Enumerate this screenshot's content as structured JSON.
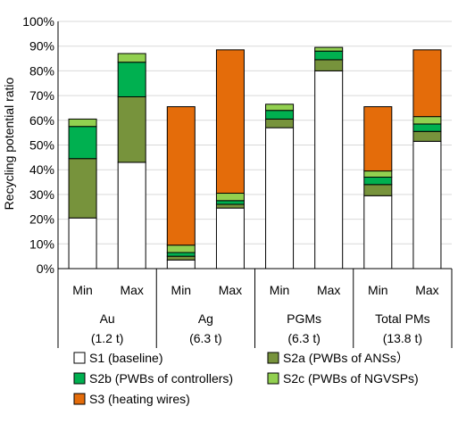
{
  "chart_data": {
    "type": "bar",
    "stacked": true,
    "ylabel": "Recycling potential ratio",
    "ylim": [
      0,
      100
    ],
    "y_ticks": [
      "0%",
      "10%",
      "20%",
      "30%",
      "40%",
      "50%",
      "60%",
      "70%",
      "80%",
      "90%",
      "100%"
    ],
    "grid": true,
    "legend_position": "bottom",
    "groups": [
      {
        "name": "Au",
        "amount": "(1.2 t)"
      },
      {
        "name": "Ag",
        "amount": "(6.3 t)"
      },
      {
        "name": "PGMs",
        "amount": "(6.3 t)"
      },
      {
        "name": "Total PMs",
        "amount": "(13.8 t)"
      }
    ],
    "categories": [
      "Min",
      "Max",
      "Min",
      "Max",
      "Min",
      "Max",
      "Min",
      "Max"
    ],
    "series": [
      {
        "name": "S1 (baseline)",
        "color": "#ffffff",
        "values": [
          20.5,
          43,
          3.5,
          24.5,
          57,
          80,
          29.5,
          51.5
        ]
      },
      {
        "name": "S2a (PWBs of ANSs）",
        "color": "#77933c",
        "values": [
          24,
          26.5,
          1.5,
          1.5,
          3.5,
          4.5,
          4.5,
          4
        ]
      },
      {
        "name": "S2b (PWBs of controllers)",
        "color": "#00b050",
        "values": [
          13,
          14,
          1.5,
          1.5,
          3.5,
          3.5,
          3,
          3
        ]
      },
      {
        "name": "S2c (PWBs of NGVSPs)",
        "color": "#92d050",
        "values": [
          3,
          3.5,
          3,
          3,
          2.5,
          1.5,
          2.5,
          3
        ]
      },
      {
        "name": "S3 (heating wires)",
        "color": "#e46c0a",
        "values": [
          0,
          0,
          56,
          58,
          0,
          0,
          26,
          27
        ]
      }
    ]
  }
}
